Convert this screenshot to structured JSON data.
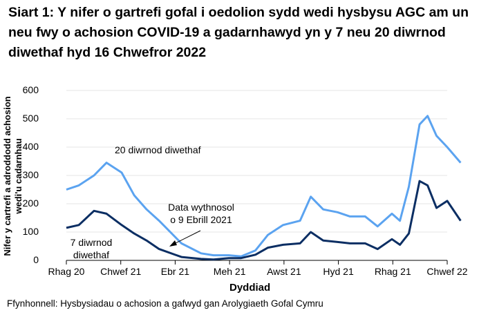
{
  "title": "Siart 1: Y nifer o gartrefi gofal i oedolion sydd wedi hysbysu AGC am un neu fwy o achosion COVID-19 a gadarnhawyd yn y 7 neu 20 diwrnod diwethaf hyd 16 Chwefror 2022",
  "source": "Ffynhonnell: Hysbysiadau o achosion a gafwyd gan Arolygiaeth Gofal Cymru",
  "colors": {
    "series_20": "#5ba3f0",
    "series_7": "#0b2e63",
    "grid": "#e6e6e6"
  },
  "annotations": {
    "label_20": "20 diwrnod diwethaf",
    "label_7_line1": "7 diwrnod",
    "label_7_line2": "diwethaf",
    "weekly_line1": "Data wythnosol",
    "weekly_line2": "o 9 Ebrill 2021"
  },
  "chart_data": {
    "type": "line",
    "title": "Siart 1: Y nifer o gartrefi gofal i oedolion sydd wedi hysbysu AGC am un neu fwy o achosion COVID-19 a gadarnhawyd yn y 7 neu 20 diwrnod diwethaf hyd 16 Chwefror 2022",
    "xlabel": "Dyddiad",
    "ylabel": "Nifer y cartrefi a adroddodd achosion wedi'u cadarnhau",
    "ylim": [
      0,
      600
    ],
    "yticks": [
      "0",
      "100",
      "200",
      "300",
      "400",
      "500",
      "600"
    ],
    "xticks": [
      "Rhag 20",
      "Chwef 21",
      "Ebr 21",
      "Meh 21",
      "Awst 21",
      "Hyd 21",
      "Rhag 21",
      "Chwef 22"
    ],
    "grid": true,
    "legend_position": "inline labels",
    "x": [
      "2020-12-01",
      "2020-12-15",
      "2021-01-01",
      "2021-01-15",
      "2021-02-01",
      "2021-02-15",
      "2021-03-01",
      "2021-03-15",
      "2021-04-09",
      "2021-05-01",
      "2021-05-15",
      "2021-06-01",
      "2021-06-15",
      "2021-07-01",
      "2021-07-15",
      "2021-08-01",
      "2021-08-20",
      "2021-09-01",
      "2021-09-15",
      "2021-10-01",
      "2021-10-15",
      "2021-11-01",
      "2021-11-15",
      "2021-12-01",
      "2021-12-10",
      "2021-12-20",
      "2022-01-01",
      "2022-01-10",
      "2022-01-20",
      "2022-02-01",
      "2022-02-16"
    ],
    "series": [
      {
        "name": "20 diwrnod diwethaf",
        "values": [
          250,
          265,
          300,
          345,
          310,
          230,
          180,
          140,
          60,
          25,
          18,
          18,
          14,
          35,
          90,
          125,
          140,
          225,
          180,
          170,
          155,
          155,
          120,
          165,
          140,
          260,
          480,
          510,
          440,
          400,
          345
        ]
      },
      {
        "name": "7 diwrnod diwethaf",
        "values": [
          115,
          125,
          175,
          165,
          125,
          95,
          70,
          40,
          12,
          5,
          3,
          8,
          8,
          20,
          45,
          55,
          60,
          100,
          70,
          65,
          60,
          60,
          40,
          75,
          55,
          95,
          280,
          265,
          185,
          210,
          140
        ]
      }
    ]
  }
}
